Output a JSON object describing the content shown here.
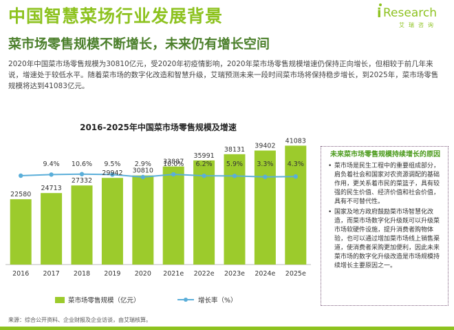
{
  "header": {
    "title": "中国智慧菜场行业发展背景",
    "subtitle": "菜市场零售规模不断增长，未来仍有增长空间",
    "intro": "2020年中国菜市场零售规模为30810亿元，受2020年初疫情影响，2020年菜市场零售规模增速仍保持正向增长，但相较于前几年来说，增速处于较低水平。随着菜市场的数字化改造和智慧升级，艾瑞预测未来一段时间菜市场将保持稳步增长，到2025年，菜市场零售规模将达到41083亿元。"
  },
  "logo": {
    "brand": "Research",
    "brand_cn": "艾瑞咨询"
  },
  "colors": {
    "accent": "#8dc21f",
    "bar": "#9ccb2c",
    "line": "#5aaed9",
    "dark_green": "#4b7f2b"
  },
  "chart_data": {
    "type": "bar",
    "title": "2016-2025年中国菜市场零售规模及增速",
    "categories": [
      "2016",
      "2017",
      "2018",
      "2019",
      "2020",
      "2021e",
      "2022e",
      "2023e",
      "2024e",
      "2025e"
    ],
    "series": [
      {
        "name": "菜市场零售规模（亿元）",
        "type": "bar",
        "values": [
          22580,
          24713,
          27332,
          29942,
          30810,
          33887,
          35991,
          38131,
          39402,
          41083
        ]
      },
      {
        "name": "增长率（%）",
        "type": "line",
        "values": [
          null,
          9.4,
          10.6,
          9.5,
          2.9,
          10.0,
          6.2,
          5.9,
          3.3,
          4.3
        ]
      }
    ],
    "value_labels": [
      "22580",
      "24713",
      "27332",
      "29942",
      "30810",
      "33887",
      "35991",
      "38131",
      "39402",
      "41083"
    ],
    "rate_labels": [
      "",
      "9.4%",
      "10.6%",
      "9.5%",
      "2.9%",
      "10.0%",
      "6.2%",
      "5.9%",
      "3.3%",
      "4.3%"
    ],
    "legend_position": "bottom"
  },
  "sidebar": {
    "title": "未来菜市场零售规模持续增长的原因",
    "items": [
      "菜市场是民生工程中的重要组成部分，肩负着社会和国家对农资源调配的基础作用，更关系着市民的菜篮子，具有较强的民生价值、经济价值和社会价值，具有不可替代性。",
      "国家及地方政府鼓励菜市场智慧化改造，而菜市场数字化升级既可以升级菜市场软硬件设施，提升消费者购物体验，也可以通过增加菜市场线上销售渠道，使消费者采购更加便利，因此未来菜市场的数字化升级改造是市场规模持续增长主要原因之一。"
    ]
  },
  "source": "来源：综合公开资料、企业财报及企业访谈，由艾瑞核算。"
}
